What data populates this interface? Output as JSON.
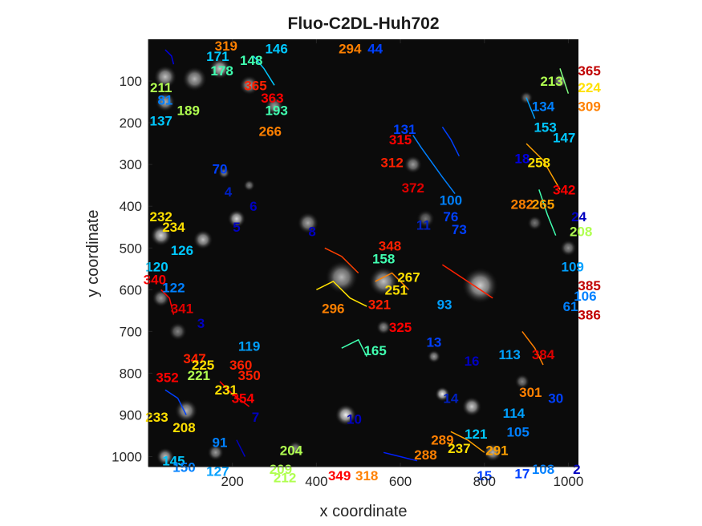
{
  "chart_data": {
    "type": "scatter",
    "title": "Fluo-C2DL-Huh702",
    "xlabel": "x coordinate",
    "ylabel": "y coordinate",
    "xlim": [
      0,
      1024
    ],
    "ylim": [
      0,
      1024
    ],
    "y_reversed": true,
    "grid": false,
    "background": "microscopy image",
    "x_ticks": [
      200,
      400,
      600,
      800,
      1000
    ],
    "y_ticks": [
      100,
      200,
      300,
      400,
      500,
      600,
      700,
      800,
      900,
      1000
    ],
    "cells": [
      {
        "x": 40,
        "y": 90,
        "r": 28,
        "v": 0.75
      },
      {
        "x": 110,
        "y": 95,
        "r": 30,
        "v": 0.7
      },
      {
        "x": 170,
        "y": 70,
        "r": 26,
        "v": 0.8
      },
      {
        "x": 240,
        "y": 110,
        "r": 24,
        "v": 0.65
      },
      {
        "x": 40,
        "y": 150,
        "r": 24,
        "v": 0.7
      },
      {
        "x": 300,
        "y": 160,
        "r": 22,
        "v": 0.6
      },
      {
        "x": 180,
        "y": 320,
        "r": 14,
        "v": 0.55
      },
      {
        "x": 240,
        "y": 350,
        "r": 14,
        "v": 0.5
      },
      {
        "x": 210,
        "y": 430,
        "r": 22,
        "v": 0.85
      },
      {
        "x": 380,
        "y": 440,
        "r": 26,
        "v": 0.65
      },
      {
        "x": 30,
        "y": 470,
        "r": 26,
        "v": 0.85
      },
      {
        "x": 130,
        "y": 480,
        "r": 24,
        "v": 0.75
      },
      {
        "x": 460,
        "y": 570,
        "r": 40,
        "v": 0.7
      },
      {
        "x": 560,
        "y": 580,
        "r": 36,
        "v": 0.75
      },
      {
        "x": 790,
        "y": 590,
        "r": 44,
        "v": 0.8
      },
      {
        "x": 30,
        "y": 620,
        "r": 22,
        "v": 0.6
      },
      {
        "x": 70,
        "y": 700,
        "r": 22,
        "v": 0.5
      },
      {
        "x": 680,
        "y": 760,
        "r": 16,
        "v": 0.6
      },
      {
        "x": 700,
        "y": 850,
        "r": 18,
        "v": 0.95
      },
      {
        "x": 470,
        "y": 900,
        "r": 26,
        "v": 0.95
      },
      {
        "x": 90,
        "y": 890,
        "r": 28,
        "v": 0.7
      },
      {
        "x": 40,
        "y": 1000,
        "r": 22,
        "v": 0.75
      },
      {
        "x": 160,
        "y": 990,
        "r": 20,
        "v": 0.6
      },
      {
        "x": 770,
        "y": 880,
        "r": 24,
        "v": 0.8
      },
      {
        "x": 820,
        "y": 990,
        "r": 22,
        "v": 0.7
      },
      {
        "x": 660,
        "y": 430,
        "r": 22,
        "v": 0.45
      },
      {
        "x": 630,
        "y": 300,
        "r": 22,
        "v": 0.6
      },
      {
        "x": 920,
        "y": 440,
        "r": 18,
        "v": 0.45
      },
      {
        "x": 1000,
        "y": 500,
        "r": 20,
        "v": 0.55
      },
      {
        "x": 900,
        "y": 140,
        "r": 16,
        "v": 0.45
      },
      {
        "x": 980,
        "y": 100,
        "r": 18,
        "v": 0.55
      },
      {
        "x": 560,
        "y": 690,
        "r": 18,
        "v": 0.55
      },
      {
        "x": 350,
        "y": 980,
        "r": 18,
        "v": 0.5
      },
      {
        "x": 890,
        "y": 820,
        "r": 18,
        "v": 0.5
      }
    ],
    "tracks": [
      {
        "x": [
          40,
          55,
          60
        ],
        "y": [
          25,
          40,
          60
        ],
        "color": "#0000e0"
      },
      {
        "x": [
          250,
          275,
          300
        ],
        "y": [
          40,
          70,
          110
        ],
        "color": "#00c8ff"
      },
      {
        "x": [
          630,
          650,
          700,
          730
        ],
        "y": [
          230,
          260,
          330,
          370
        ],
        "color": "#0080ff"
      },
      {
        "x": [
          700,
          720,
          740
        ],
        "y": [
          210,
          240,
          280
        ],
        "color": "#0040ff"
      },
      {
        "x": [
          980,
          990,
          1000
        ],
        "y": [
          70,
          100,
          130
        ],
        "color": "#80ff80"
      },
      {
        "x": [
          900,
          920
        ],
        "y": [
          140,
          190
        ],
        "color": "#00a0ff"
      },
      {
        "x": [
          900,
          940,
          980
        ],
        "y": [
          250,
          290,
          360
        ],
        "color": "#ffa000"
      },
      {
        "x": [
          930,
          950,
          970
        ],
        "y": [
          360,
          420,
          470
        ],
        "color": "#40ffb0"
      },
      {
        "x": [
          420,
          460,
          500
        ],
        "y": [
          500,
          520,
          560
        ],
        "color": "#ff4000"
      },
      {
        "x": [
          400,
          440,
          480,
          520
        ],
        "y": [
          600,
          580,
          620,
          640
        ],
        "color": "#ffe000"
      },
      {
        "x": [
          540,
          580,
          620
        ],
        "y": [
          580,
          560,
          600
        ],
        "color": "#ff8000"
      },
      {
        "x": [
          700,
          760,
          820
        ],
        "y": [
          540,
          580,
          620
        ],
        "color": "#ff2000"
      },
      {
        "x": [
          460,
          500,
          520
        ],
        "y": [
          740,
          720,
          760
        ],
        "color": "#40ffb0"
      },
      {
        "x": [
          40,
          70,
          90
        ],
        "y": [
          840,
          860,
          900
        ],
        "color": "#0040ff"
      },
      {
        "x": [
          170,
          200,
          240
        ],
        "y": [
          820,
          850,
          880
        ],
        "color": "#ff0000"
      },
      {
        "x": [
          720,
          760,
          800
        ],
        "y": [
          940,
          960,
          990
        ],
        "color": "#ffa000"
      },
      {
        "x": [
          890,
          920,
          940
        ],
        "y": [
          700,
          740,
          780
        ],
        "color": "#ff8000"
      },
      {
        "x": [
          30,
          50,
          60
        ],
        "y": [
          600,
          620,
          660
        ],
        "color": "#ff0000"
      },
      {
        "x": [
          210,
          230
        ],
        "y": [
          960,
          1000
        ],
        "color": "#0000c0"
      },
      {
        "x": [
          560,
          600,
          640
        ],
        "y": [
          990,
          1000,
          1010
        ],
        "color": "#0020ff"
      }
    ],
    "labels": [
      {
        "t": "294",
        "x": 480,
        "y": 22,
        "c": "#ff8000"
      },
      {
        "t": "44",
        "x": 540,
        "y": 22,
        "c": "#0040ff"
      },
      {
        "t": "146",
        "x": 305,
        "y": 22,
        "c": "#00c8ff"
      },
      {
        "t": "319",
        "x": 185,
        "y": 15,
        "c": "#ff8000"
      },
      {
        "t": "171",
        "x": 165,
        "y": 40,
        "c": "#00c8ff"
      },
      {
        "t": "148",
        "x": 245,
        "y": 50,
        "c": "#40ffb0"
      },
      {
        "t": "178",
        "x": 175,
        "y": 75,
        "c": "#40ffb0"
      },
      {
        "t": "211",
        "x": 30,
        "y": 115,
        "c": "#b0ff50"
      },
      {
        "t": "137",
        "x": 30,
        "y": 195,
        "c": "#00c8ff"
      },
      {
        "t": "189",
        "x": 95,
        "y": 170,
        "c": "#b0ff50"
      },
      {
        "t": "81",
        "x": 40,
        "y": 145,
        "c": "#0080ff"
      },
      {
        "t": "365",
        "x": 255,
        "y": 110,
        "c": "#ff2000"
      },
      {
        "t": "363",
        "x": 295,
        "y": 140,
        "c": "#ff0000"
      },
      {
        "t": "193",
        "x": 305,
        "y": 170,
        "c": "#40ffb0"
      },
      {
        "t": "266",
        "x": 290,
        "y": 220,
        "c": "#ff8000"
      },
      {
        "t": "70",
        "x": 170,
        "y": 310,
        "c": "#0040ff"
      },
      {
        "t": "4",
        "x": 190,
        "y": 365,
        "c": "#0020c0"
      },
      {
        "t": "6",
        "x": 250,
        "y": 400,
        "c": "#0000c0"
      },
      {
        "t": "232",
        "x": 30,
        "y": 425,
        "c": "#ffe000"
      },
      {
        "t": "234",
        "x": 60,
        "y": 450,
        "c": "#ffe000"
      },
      {
        "t": "5",
        "x": 210,
        "y": 450,
        "c": "#0000c0"
      },
      {
        "t": "8",
        "x": 390,
        "y": 460,
        "c": "#0000c0"
      },
      {
        "t": "126",
        "x": 80,
        "y": 505,
        "c": "#00c8ff"
      },
      {
        "t": "120",
        "x": 20,
        "y": 545,
        "c": "#00c8ff"
      },
      {
        "t": "340",
        "x": 15,
        "y": 575,
        "c": "#ff0000"
      },
      {
        "t": "122",
        "x": 60,
        "y": 595,
        "c": "#0080ff"
      },
      {
        "t": "341",
        "x": 80,
        "y": 645,
        "c": "#e00000"
      },
      {
        "t": "3",
        "x": 125,
        "y": 680,
        "c": "#0000c0"
      },
      {
        "t": "119",
        "x": 240,
        "y": 735,
        "c": "#00a0ff"
      },
      {
        "t": "347",
        "x": 110,
        "y": 765,
        "c": "#ff2000"
      },
      {
        "t": "225",
        "x": 130,
        "y": 780,
        "c": "#ffe000"
      },
      {
        "t": "360",
        "x": 220,
        "y": 780,
        "c": "#ff2000"
      },
      {
        "t": "221",
        "x": 120,
        "y": 805,
        "c": "#b0ff50"
      },
      {
        "t": "352",
        "x": 45,
        "y": 810,
        "c": "#ff0000"
      },
      {
        "t": "350",
        "x": 240,
        "y": 805,
        "c": "#ff2000"
      },
      {
        "t": "231",
        "x": 185,
        "y": 840,
        "c": "#ffe000"
      },
      {
        "t": "354",
        "x": 225,
        "y": 860,
        "c": "#ff0000"
      },
      {
        "t": "233",
        "x": 20,
        "y": 905,
        "c": "#ffe000"
      },
      {
        "t": "7",
        "x": 255,
        "y": 905,
        "c": "#0000c0"
      },
      {
        "t": "208",
        "x": 85,
        "y": 930,
        "c": "#ffe000"
      },
      {
        "t": "91",
        "x": 170,
        "y": 965,
        "c": "#0080ff"
      },
      {
        "t": "204",
        "x": 340,
        "y": 985,
        "c": "#b0ff50"
      },
      {
        "t": "145",
        "x": 60,
        "y": 1010,
        "c": "#00c8ff"
      },
      {
        "t": "150",
        "x": 85,
        "y": 1025,
        "c": "#0080ff"
      },
      {
        "t": "127",
        "x": 165,
        "y": 1035,
        "c": "#00a0ff"
      },
      {
        "t": "209",
        "x": 315,
        "y": 1030,
        "c": "#b0ff50"
      },
      {
        "t": "212",
        "x": 325,
        "y": 1050,
        "c": "#b0ff50"
      },
      {
        "t": "349",
        "x": 455,
        "y": 1045,
        "c": "#ff0000"
      },
      {
        "t": "318",
        "x": 520,
        "y": 1045,
        "c": "#ff8000"
      },
      {
        "t": "10",
        "x": 490,
        "y": 910,
        "c": "#0000c0"
      },
      {
        "t": "348",
        "x": 575,
        "y": 495,
        "c": "#ff2000"
      },
      {
        "t": "158",
        "x": 560,
        "y": 525,
        "c": "#40ffb0"
      },
      {
        "t": "296",
        "x": 440,
        "y": 645,
        "c": "#ff8000"
      },
      {
        "t": "251",
        "x": 590,
        "y": 600,
        "c": "#ffe000"
      },
      {
        "t": "267",
        "x": 620,
        "y": 570,
        "c": "#ffe000"
      },
      {
        "t": "321",
        "x": 550,
        "y": 635,
        "c": "#ff2000"
      },
      {
        "t": "93",
        "x": 705,
        "y": 635,
        "c": "#00a0ff"
      },
      {
        "t": "325",
        "x": 600,
        "y": 690,
        "c": "#ff0000"
      },
      {
        "t": "165",
        "x": 540,
        "y": 745,
        "c": "#40ffb0"
      },
      {
        "t": "13",
        "x": 680,
        "y": 725,
        "c": "#0040ff"
      },
      {
        "t": "100",
        "x": 720,
        "y": 385,
        "c": "#0080ff"
      },
      {
        "t": "11",
        "x": 655,
        "y": 445,
        "c": "#0020c0"
      },
      {
        "t": "73",
        "x": 740,
        "y": 455,
        "c": "#0040ff"
      },
      {
        "t": "76",
        "x": 720,
        "y": 425,
        "c": "#0040ff"
      },
      {
        "t": "372",
        "x": 630,
        "y": 355,
        "c": "#e00000"
      },
      {
        "t": "312",
        "x": 580,
        "y": 295,
        "c": "#ff2000"
      },
      {
        "t": "315",
        "x": 600,
        "y": 240,
        "c": "#ff0000"
      },
      {
        "t": "131",
        "x": 610,
        "y": 215,
        "c": "#0040ff"
      },
      {
        "t": "258",
        "x": 930,
        "y": 295,
        "c": "#ffe000"
      },
      {
        "t": "18",
        "x": 890,
        "y": 285,
        "c": "#0000e0"
      },
      {
        "t": "282",
        "x": 890,
        "y": 395,
        "c": "#ff8000"
      },
      {
        "t": "265",
        "x": 940,
        "y": 395,
        "c": "#ffa000"
      },
      {
        "t": "342",
        "x": 990,
        "y": 360,
        "c": "#ff0000"
      },
      {
        "t": "365",
        "x": 1050,
        "y": 75,
        "c": "#c00000"
      },
      {
        "t": "213",
        "x": 960,
        "y": 100,
        "c": "#b0ff50"
      },
      {
        "t": "224",
        "x": 1050,
        "y": 115,
        "c": "#ffe000"
      },
      {
        "t": "134",
        "x": 940,
        "y": 160,
        "c": "#0080ff"
      },
      {
        "t": "309",
        "x": 1050,
        "y": 160,
        "c": "#ff8000"
      },
      {
        "t": "153",
        "x": 945,
        "y": 210,
        "c": "#00c8ff"
      },
      {
        "t": "147",
        "x": 990,
        "y": 235,
        "c": "#00c8ff"
      },
      {
        "t": "24",
        "x": 1025,
        "y": 425,
        "c": "#0000c0"
      },
      {
        "t": "208",
        "x": 1030,
        "y": 460,
        "c": "#b0ff50"
      },
      {
        "t": "109",
        "x": 1010,
        "y": 545,
        "c": "#00a0ff"
      },
      {
        "t": "385",
        "x": 1050,
        "y": 590,
        "c": "#c00000"
      },
      {
        "t": "106",
        "x": 1040,
        "y": 615,
        "c": "#0080ff"
      },
      {
        "t": "386",
        "x": 1050,
        "y": 660,
        "c": "#c00000"
      },
      {
        "t": "61",
        "x": 1005,
        "y": 640,
        "c": "#0080ff"
      },
      {
        "t": "384",
        "x": 940,
        "y": 755,
        "c": "#e00000"
      },
      {
        "t": "113",
        "x": 860,
        "y": 755,
        "c": "#00a0ff"
      },
      {
        "t": "16",
        "x": 770,
        "y": 770,
        "c": "#0000c0"
      },
      {
        "t": "301",
        "x": 910,
        "y": 845,
        "c": "#ff8000"
      },
      {
        "t": "30",
        "x": 970,
        "y": 860,
        "c": "#0040ff"
      },
      {
        "t": "114",
        "x": 870,
        "y": 895,
        "c": "#00a0ff"
      },
      {
        "t": "14",
        "x": 720,
        "y": 860,
        "c": "#0020c0"
      },
      {
        "t": "105",
        "x": 880,
        "y": 940,
        "c": "#0080ff"
      },
      {
        "t": "121",
        "x": 780,
        "y": 945,
        "c": "#00c8ff"
      },
      {
        "t": "289",
        "x": 700,
        "y": 960,
        "c": "#ff8000"
      },
      {
        "t": "288",
        "x": 660,
        "y": 995,
        "c": "#ff8000"
      },
      {
        "t": "237",
        "x": 740,
        "y": 980,
        "c": "#ffe000"
      },
      {
        "t": "291",
        "x": 830,
        "y": 985,
        "c": "#ffa000"
      },
      {
        "t": "108",
        "x": 940,
        "y": 1030,
        "c": "#0080ff"
      },
      {
        "t": "15",
        "x": 800,
        "y": 1045,
        "c": "#0040ff"
      },
      {
        "t": "17",
        "x": 890,
        "y": 1040,
        "c": "#0040ff"
      },
      {
        "t": "2",
        "x": 1020,
        "y": 1030,
        "c": "#0000c0"
      }
    ]
  }
}
